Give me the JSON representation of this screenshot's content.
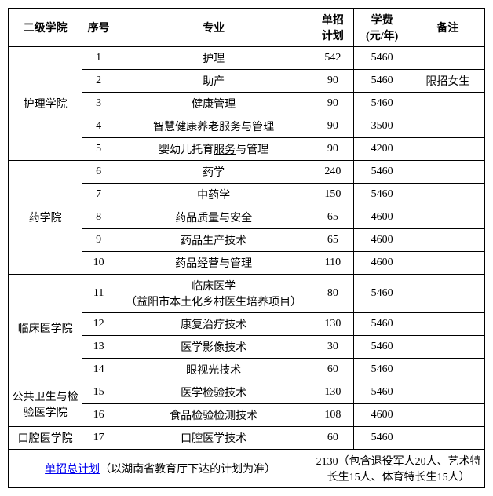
{
  "headers": {
    "college": "二级学院",
    "seq": "序号",
    "major": "专业",
    "plan_l1": "单招",
    "plan_l2": "计划",
    "fee_l1": "学费",
    "fee_l2": "(元/年)",
    "remark": "备注"
  },
  "colleges": [
    {
      "name": "护理学院",
      "rows": [
        {
          "seq": "1",
          "major": "护理",
          "plan": "542",
          "fee": "5460",
          "remark": ""
        },
        {
          "seq": "2",
          "major": "助产",
          "plan": "90",
          "fee": "5460",
          "remark": "限招女生"
        },
        {
          "seq": "3",
          "major": "健康管理",
          "plan": "90",
          "fee": "5460",
          "remark": ""
        },
        {
          "seq": "4",
          "major": "智慧健康养老服务与管理",
          "plan": "90",
          "fee": "3500",
          "remark": ""
        },
        {
          "seq": "5",
          "major_pre": "婴幼儿托育",
          "major_link": "服务",
          "major_post": "与管理",
          "plan": "90",
          "fee": "4200",
          "remark": ""
        }
      ]
    },
    {
      "name": "药学院",
      "rows": [
        {
          "seq": "6",
          "major": "药学",
          "plan": "240",
          "fee": "5460",
          "remark": ""
        },
        {
          "seq": "7",
          "major": "中药学",
          "plan": "150",
          "fee": "5460",
          "remark": ""
        },
        {
          "seq": "8",
          "major": "药品质量与安全",
          "plan": "65",
          "fee": "4600",
          "remark": ""
        },
        {
          "seq": "9",
          "major": "药品生产技术",
          "plan": "65",
          "fee": "4600",
          "remark": ""
        },
        {
          "seq": "10",
          "major": "药品经营与管理",
          "plan": "110",
          "fee": "4600",
          "remark": ""
        }
      ]
    },
    {
      "name": "临床医学院",
      "rows": [
        {
          "seq": "11",
          "major_l1": "临床医学",
          "major_l2": "（益阳市本土化乡村医生培养项目）",
          "plan": "80",
          "fee": "5460",
          "remark": ""
        },
        {
          "seq": "12",
          "major": "康复治疗技术",
          "plan": "130",
          "fee": "5460",
          "remark": ""
        },
        {
          "seq": "13",
          "major": "医学影像技术",
          "plan": "30",
          "fee": "5460",
          "remark": ""
        },
        {
          "seq": "14",
          "major": "眼视光技术",
          "plan": "60",
          "fee": "5460",
          "remark": ""
        }
      ]
    },
    {
      "name": "公共卫生与检验医学院",
      "rows": [
        {
          "seq": "15",
          "major": "医学检验技术",
          "plan": "130",
          "fee": "5460",
          "remark": ""
        },
        {
          "seq": "16",
          "major": "食品检验检测技术",
          "plan": "108",
          "fee": "4600",
          "remark": ""
        }
      ]
    },
    {
      "name": "口腔医学院",
      "rows": [
        {
          "seq": "17",
          "major": "口腔医学技术",
          "plan": "60",
          "fee": "5460",
          "remark": ""
        }
      ]
    }
  ],
  "footer": {
    "label_link": "单招总计划",
    "label_rest": "（以湖南省教育厅下达的计划为准）",
    "value": "2130（包含退役军人20人、艺术特长生15人、体育特长生15人）"
  }
}
